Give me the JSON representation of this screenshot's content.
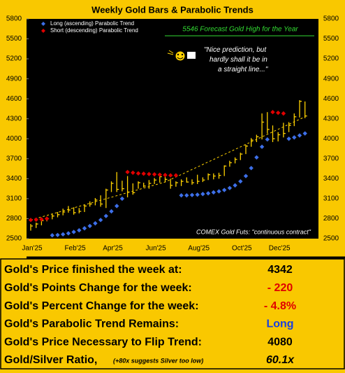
{
  "chart_data": {
    "type": "ohlc_parabolic",
    "title": "Weekly Gold Bars & Parabolic Trends",
    "categories": [
      "Jan'25",
      null,
      null,
      null,
      null,
      null,
      null,
      null,
      "Feb'25",
      null,
      null,
      null,
      null,
      null,
      null,
      "Apr'25",
      null,
      null,
      null,
      null,
      null,
      null,
      null,
      "Jun'25",
      null,
      null,
      null,
      null,
      null,
      null,
      null,
      "Aug'25",
      null,
      null,
      null,
      null,
      null,
      null,
      null,
      "Oct'25",
      null,
      null,
      null,
      null,
      null,
      null,
      "Dec'25",
      null,
      null,
      null,
      null,
      null
    ],
    "high": [
      2720,
      2740,
      2790,
      2830,
      2870,
      2900,
      2950,
      2990,
      2970,
      2960,
      3010,
      3060,
      3110,
      3150,
      3250,
      3360,
      3500,
      3370,
      3440,
      3330,
      3360,
      3340,
      3380,
      3410,
      3450,
      3450,
      3400,
      3360,
      3390,
      3420,
      3390,
      3460,
      3420,
      3480,
      3480,
      3490,
      3600,
      3670,
      3720,
      3790,
      3910,
      4010,
      4060,
      4380,
      4400,
      4200,
      4100,
      4240,
      4250,
      4380,
      4580,
      4560
    ],
    "low": [
      2620,
      2660,
      2700,
      2760,
      2790,
      2820,
      2850,
      2890,
      2860,
      2880,
      2900,
      2980,
      3000,
      2980,
      2960,
      3200,
      3200,
      3210,
      3120,
      3160,
      3250,
      3270,
      3250,
      3320,
      3340,
      3350,
      3250,
      3280,
      3290,
      3340,
      3310,
      3320,
      3350,
      3380,
      3390,
      3400,
      3440,
      3580,
      3630,
      3680,
      3770,
      3880,
      3950,
      3990,
      4080,
      3950,
      3960,
      4020,
      4100,
      4190,
      4320,
      4310
    ],
    "close": [
      2690,
      2720,
      2770,
      2800,
      2840,
      2860,
      2900,
      2930,
      2890,
      2910,
      2990,
      3020,
      3080,
      3020,
      3230,
      3330,
      3240,
      3250,
      3200,
      3190,
      3340,
      3290,
      3330,
      3380,
      3430,
      3390,
      3300,
      3340,
      3360,
      3350,
      3340,
      3360,
      3380,
      3460,
      3440,
      3450,
      3590,
      3640,
      3690,
      3770,
      3890,
      3980,
      4030,
      4250,
      4140,
      4000,
      4060,
      4080,
      4200,
      4330,
      4562,
      4342
    ],
    "bar_color": "#ffd200",
    "series": [
      {
        "name": "Long (ascending) Parabolic Trend",
        "color": "#3d6fe8",
        "values": [
          null,
          null,
          null,
          null,
          2550,
          2555,
          2565,
          2580,
          2600,
          2625,
          2655,
          2690,
          2730,
          2780,
          2840,
          2910,
          2990,
          3100,
          null,
          null,
          null,
          null,
          null,
          null,
          null,
          null,
          null,
          null,
          3150,
          3150,
          3155,
          3160,
          3170,
          3180,
          3195,
          3210,
          3230,
          3260,
          3300,
          3360,
          3440,
          3560,
          3720,
          3880,
          3990,
          null,
          null,
          null,
          4000,
          4020,
          4050,
          4080
        ]
      },
      {
        "name": "Short (descending) Parabolic Trend",
        "color": "#e00000",
        "values": [
          2780,
          2785,
          2790,
          2800,
          null,
          null,
          null,
          null,
          null,
          null,
          null,
          null,
          null,
          null,
          null,
          null,
          null,
          null,
          3500,
          3490,
          3480,
          3475,
          3470,
          3465,
          3460,
          3455,
          3450,
          3450,
          null,
          null,
          null,
          null,
          null,
          null,
          null,
          null,
          null,
          null,
          null,
          null,
          null,
          null,
          null,
          null,
          null,
          4400,
          4390,
          4380,
          null,
          null,
          null,
          null
        ]
      }
    ],
    "trend": {
      "x": [
        0,
        25,
        51
      ],
      "values": [
        2780,
        3350,
        4330
      ],
      "color": "#ffd200"
    },
    "forecast": {
      "value": 5546,
      "label": "5546 Forecast Gold High for the Year",
      "color": "#33dd33"
    },
    "annotation": "\"Nice prediction, but hardly shall it be in a straight line...\"",
    "source_note": "COMEX Gold Futs:  \"continuous contract\"",
    "ylim": [
      2500,
      5800
    ],
    "yticks": [
      2500,
      2800,
      3100,
      3400,
      3700,
      4000,
      4300,
      4600,
      4900,
      5200,
      5500,
      5800
    ]
  },
  "table": {
    "rows": [
      {
        "label": "Gold's Price finished the week at:",
        "value": "4342",
        "color": "#000000"
      },
      {
        "label": "Gold's Points Change for the week:",
        "value": "- 220",
        "color": "#e00000"
      },
      {
        "label": "Gold's Percent Change for the week:",
        "value": "- 4.8%",
        "color": "#e00000"
      },
      {
        "label": "Gold's Parabolic Trend Remains:",
        "value": "Long",
        "color": "#1a3fe0"
      },
      {
        "label": "Gold's Price Necessary to Flip Trend:",
        "value": "4080",
        "color": "#000000"
      },
      {
        "label": "Gold/Silver Ratio,",
        "note": "(+80x suggests Silver too low)",
        "value": "60.1x",
        "color": "#000000"
      }
    ]
  }
}
